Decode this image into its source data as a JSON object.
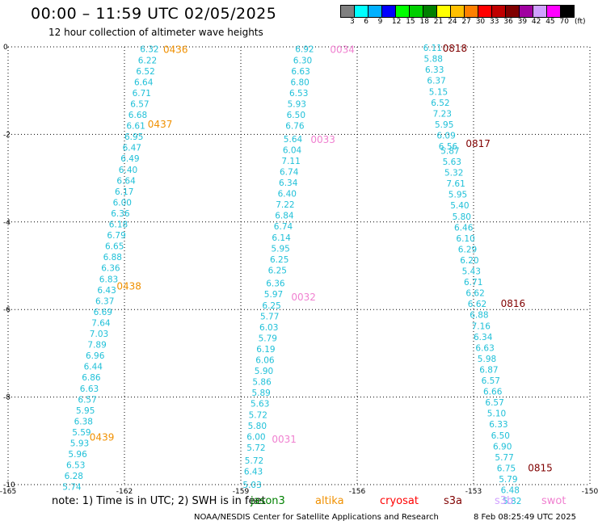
{
  "header": {
    "title": "00:00 – 11:59 UTC 02/05/2025",
    "subtitle": "12 hour collection of altimeter wave heights"
  },
  "legend": {
    "colors": [
      "#808080",
      "#00ffff",
      "#00b0ff",
      "#0000ff",
      "#00ff00",
      "#00d000",
      "#008000",
      "#ffff00",
      "#ffc000",
      "#ff8000",
      "#ff0000",
      "#c00000",
      "#800000",
      "#a000a0",
      "#d0a0ff",
      "#ff00ff",
      "#000000"
    ],
    "labels": [
      "3",
      "6",
      "9",
      "12",
      "15",
      "18",
      "21",
      "24",
      "27",
      "30",
      "33",
      "36",
      "39",
      "42",
      "45",
      "70"
    ],
    "unit": "(ft)"
  },
  "axes": {
    "x_ticks": [
      "-165",
      "-162",
      "-159",
      "-156",
      "-153",
      "-150"
    ],
    "y_ticks": [
      "0",
      "-2",
      "-4",
      "-6",
      "-8",
      "-10"
    ]
  },
  "passes": [
    {
      "color": "#f09000",
      "labels": [
        {
          "text": "0436",
          "lon": -161.0,
          "lat": -0.05
        },
        {
          "text": "0437",
          "lon": -161.4,
          "lat": -1.75
        },
        {
          "text": "0438",
          "lon": -162.2,
          "lat": -5.45
        },
        {
          "text": "0439",
          "lon": -162.9,
          "lat": -8.9
        }
      ],
      "points": [
        {
          "lon": -161.6,
          "lat": -0.05,
          "v": "6.32"
        },
        {
          "lon": -161.65,
          "lat": -0.3,
          "v": "6.22"
        },
        {
          "lon": -161.7,
          "lat": -0.55,
          "v": "6.52"
        },
        {
          "lon": -161.75,
          "lat": -0.8,
          "v": "6.64"
        },
        {
          "lon": -161.8,
          "lat": -1.05,
          "v": "6.71"
        },
        {
          "lon": -161.85,
          "lat": -1.3,
          "v": "6.57"
        },
        {
          "lon": -161.9,
          "lat": -1.55,
          "v": "6.68"
        },
        {
          "lon": -161.95,
          "lat": -1.8,
          "v": "6.61"
        },
        {
          "lon": -162.0,
          "lat": -2.05,
          "v": "6.95"
        },
        {
          "lon": -162.05,
          "lat": -2.3,
          "v": "6.47"
        },
        {
          "lon": -162.1,
          "lat": -2.55,
          "v": "6.49"
        },
        {
          "lon": -162.15,
          "lat": -2.8,
          "v": "6.40"
        },
        {
          "lon": -162.2,
          "lat": -3.05,
          "v": "6.64"
        },
        {
          "lon": -162.25,
          "lat": -3.3,
          "v": "6.17"
        },
        {
          "lon": -162.3,
          "lat": -3.55,
          "v": "6.00"
        },
        {
          "lon": -162.35,
          "lat": -3.8,
          "v": "6.36"
        },
        {
          "lon": -162.4,
          "lat": -4.05,
          "v": "6.18"
        },
        {
          "lon": -162.45,
          "lat": -4.3,
          "v": "6.79"
        },
        {
          "lon": -162.5,
          "lat": -4.55,
          "v": "6.65"
        },
        {
          "lon": -162.55,
          "lat": -4.8,
          "v": "6.88"
        },
        {
          "lon": -162.6,
          "lat": -5.05,
          "v": "6.36"
        },
        {
          "lon": -162.65,
          "lat": -5.3,
          "v": "6.83"
        },
        {
          "lon": -162.7,
          "lat": -5.55,
          "v": "6.43"
        },
        {
          "lon": -162.75,
          "lat": -5.8,
          "v": "6.37"
        },
        {
          "lon": -162.8,
          "lat": -6.05,
          "v": "6.69"
        },
        {
          "lon": -162.85,
          "lat": -6.3,
          "v": "7.64"
        },
        {
          "lon": -162.9,
          "lat": -6.55,
          "v": "7.03"
        },
        {
          "lon": -162.95,
          "lat": -6.8,
          "v": "7.89"
        },
        {
          "lon": -163.0,
          "lat": -7.05,
          "v": "6.96"
        },
        {
          "lon": -163.05,
          "lat": -7.3,
          "v": "6.44"
        },
        {
          "lon": -163.1,
          "lat": -7.55,
          "v": "6.86"
        },
        {
          "lon": -163.15,
          "lat": -7.8,
          "v": "6.63"
        },
        {
          "lon": -163.2,
          "lat": -8.05,
          "v": "6.57"
        },
        {
          "lon": -163.25,
          "lat": -8.3,
          "v": "5.95"
        },
        {
          "lon": -163.3,
          "lat": -8.55,
          "v": "6.38"
        },
        {
          "lon": -163.35,
          "lat": -8.8,
          "v": "5.59"
        },
        {
          "lon": -163.4,
          "lat": -9.05,
          "v": "5.93"
        },
        {
          "lon": -163.45,
          "lat": -9.3,
          "v": "5.96"
        },
        {
          "lon": -163.5,
          "lat": -9.55,
          "v": "6.53"
        },
        {
          "lon": -163.55,
          "lat": -9.8,
          "v": "6.28"
        },
        {
          "lon": -163.6,
          "lat": -10.05,
          "v": "5.74"
        }
      ]
    },
    {
      "color": "#f080d0",
      "labels": [
        {
          "text": "0034",
          "lon": -156.7,
          "lat": -0.05
        },
        {
          "text": "0033",
          "lon": -157.2,
          "lat": -2.1
        },
        {
          "text": "0032",
          "lon": -157.7,
          "lat": -5.7
        },
        {
          "text": "0031",
          "lon": -158.2,
          "lat": -8.95
        }
      ],
      "points": [
        {
          "lon": -157.6,
          "lat": -0.05,
          "v": "6.92"
        },
        {
          "lon": -157.65,
          "lat": -0.3,
          "v": "6.30"
        },
        {
          "lon": -157.7,
          "lat": -0.55,
          "v": "6.63"
        },
        {
          "lon": -157.72,
          "lat": -0.8,
          "v": "6.80"
        },
        {
          "lon": -157.75,
          "lat": -1.05,
          "v": "6.53"
        },
        {
          "lon": -157.8,
          "lat": -1.3,
          "v": "5.93"
        },
        {
          "lon": -157.82,
          "lat": -1.55,
          "v": "6.50"
        },
        {
          "lon": -157.85,
          "lat": -1.8,
          "v": "6.76"
        },
        {
          "lon": -157.9,
          "lat": -2.1,
          "v": "5.64"
        },
        {
          "lon": -157.92,
          "lat": -2.35,
          "v": "6.04"
        },
        {
          "lon": -157.95,
          "lat": -2.6,
          "v": "7.11"
        },
        {
          "lon": -158.0,
          "lat": -2.85,
          "v": "6.74"
        },
        {
          "lon": -158.02,
          "lat": -3.1,
          "v": "6.34"
        },
        {
          "lon": -158.05,
          "lat": -3.35,
          "v": "6.40"
        },
        {
          "lon": -158.1,
          "lat": -3.6,
          "v": "7.22"
        },
        {
          "lon": -158.12,
          "lat": -3.85,
          "v": "6.84"
        },
        {
          "lon": -158.15,
          "lat": -4.1,
          "v": "6.74"
        },
        {
          "lon": -158.2,
          "lat": -4.35,
          "v": "6.14"
        },
        {
          "lon": -158.22,
          "lat": -4.6,
          "v": "5.95"
        },
        {
          "lon": -158.25,
          "lat": -4.85,
          "v": "6.25"
        },
        {
          "lon": -158.3,
          "lat": -5.1,
          "v": "6.25"
        },
        {
          "lon": -158.35,
          "lat": -5.4,
          "v": "6.36"
        },
        {
          "lon": -158.4,
          "lat": -5.65,
          "v": "5.97"
        },
        {
          "lon": -158.45,
          "lat": -5.9,
          "v": "6.25"
        },
        {
          "lon": -158.5,
          "lat": -6.15,
          "v": "5.77"
        },
        {
          "lon": -158.52,
          "lat": -6.4,
          "v": "6.03"
        },
        {
          "lon": -158.55,
          "lat": -6.65,
          "v": "5.79"
        },
        {
          "lon": -158.6,
          "lat": -6.9,
          "v": "6.19"
        },
        {
          "lon": -158.62,
          "lat": -7.15,
          "v": "6.06"
        },
        {
          "lon": -158.65,
          "lat": -7.4,
          "v": "5.90"
        },
        {
          "lon": -158.7,
          "lat": -7.65,
          "v": "5.86"
        },
        {
          "lon": -158.72,
          "lat": -7.9,
          "v": "5.89"
        },
        {
          "lon": -158.75,
          "lat": -8.15,
          "v": "5.63"
        },
        {
          "lon": -158.8,
          "lat": -8.4,
          "v": "5.72"
        },
        {
          "lon": -158.82,
          "lat": -8.65,
          "v": "5.80"
        },
        {
          "lon": -158.85,
          "lat": -8.9,
          "v": "6.00"
        },
        {
          "lon": -158.85,
          "lat": -9.15,
          "v": "5.72"
        },
        {
          "lon": -158.9,
          "lat": -9.45,
          "v": "5.72"
        },
        {
          "lon": -158.92,
          "lat": -9.7,
          "v": "6.43"
        },
        {
          "lon": -158.95,
          "lat": -10.0,
          "v": "5.03"
        }
      ]
    },
    {
      "color": "#800000",
      "labels": [
        {
          "text": "0818",
          "lon": -153.8,
          "lat": -0.02
        },
        {
          "text": "0817",
          "lon": -153.2,
          "lat": -2.2
        },
        {
          "text": "0816",
          "lon": -152.3,
          "lat": -5.85
        },
        {
          "text": "0815",
          "lon": -151.6,
          "lat": -9.6
        }
      ],
      "points": [
        {
          "lon": -154.3,
          "lat": -0.02,
          "v": "6.11"
        },
        {
          "lon": -154.28,
          "lat": -0.27,
          "v": "5.88"
        },
        {
          "lon": -154.25,
          "lat": -0.52,
          "v": "6.33"
        },
        {
          "lon": -154.2,
          "lat": -0.77,
          "v": "6.37"
        },
        {
          "lon": -154.15,
          "lat": -1.02,
          "v": "5.15"
        },
        {
          "lon": -154.1,
          "lat": -1.27,
          "v": "6.52"
        },
        {
          "lon": -154.05,
          "lat": -1.52,
          "v": "7.23"
        },
        {
          "lon": -154.0,
          "lat": -1.77,
          "v": "5.95"
        },
        {
          "lon": -153.95,
          "lat": -2.02,
          "v": "6.09"
        },
        {
          "lon": -153.9,
          "lat": -2.27,
          "v": "6.56"
        },
        {
          "lon": -153.85,
          "lat": -2.37,
          "v": "5.87"
        },
        {
          "lon": -153.8,
          "lat": -2.62,
          "v": "5.63"
        },
        {
          "lon": -153.75,
          "lat": -2.87,
          "v": "5.32"
        },
        {
          "lon": -153.7,
          "lat": -3.12,
          "v": "7.61"
        },
        {
          "lon": -153.65,
          "lat": -3.37,
          "v": "5.95"
        },
        {
          "lon": -153.6,
          "lat": -3.62,
          "v": "5.40"
        },
        {
          "lon": -153.55,
          "lat": -3.87,
          "v": "5.80"
        },
        {
          "lon": -153.5,
          "lat": -4.12,
          "v": "6.46"
        },
        {
          "lon": -153.45,
          "lat": -4.37,
          "v": "6.10"
        },
        {
          "lon": -153.4,
          "lat": -4.62,
          "v": "6.29"
        },
        {
          "lon": -153.35,
          "lat": -4.87,
          "v": "6.20"
        },
        {
          "lon": -153.3,
          "lat": -5.12,
          "v": "5.43"
        },
        {
          "lon": -153.25,
          "lat": -5.37,
          "v": "6.71"
        },
        {
          "lon": -153.2,
          "lat": -5.62,
          "v": "6.62"
        },
        {
          "lon": -153.15,
          "lat": -5.87,
          "v": "6.62"
        },
        {
          "lon": -153.1,
          "lat": -6.12,
          "v": "6.88"
        },
        {
          "lon": -153.05,
          "lat": -6.37,
          "v": "7.16"
        },
        {
          "lon": -153.0,
          "lat": -6.62,
          "v": "6.34"
        },
        {
          "lon": -152.95,
          "lat": -6.87,
          "v": "6.63"
        },
        {
          "lon": -152.9,
          "lat": -7.12,
          "v": "5.98"
        },
        {
          "lon": -152.85,
          "lat": -7.37,
          "v": "6.87"
        },
        {
          "lon": -152.8,
          "lat": -7.62,
          "v": "6.57"
        },
        {
          "lon": -152.75,
          "lat": -7.87,
          "v": "6.66"
        },
        {
          "lon": -152.7,
          "lat": -8.12,
          "v": "6.57"
        },
        {
          "lon": -152.65,
          "lat": -8.37,
          "v": "5.10"
        },
        {
          "lon": -152.6,
          "lat": -8.62,
          "v": "6.33"
        },
        {
          "lon": -152.55,
          "lat": -8.87,
          "v": "6.50"
        },
        {
          "lon": -152.5,
          "lat": -9.12,
          "v": "6.90"
        },
        {
          "lon": -152.45,
          "lat": -9.37,
          "v": "5.77"
        },
        {
          "lon": -152.4,
          "lat": -9.62,
          "v": "6.75"
        },
        {
          "lon": -152.35,
          "lat": -9.87,
          "v": "5.79"
        },
        {
          "lon": -152.3,
          "lat": -10.12,
          "v": "6.48"
        },
        {
          "lon": -152.25,
          "lat": -10.37,
          "v": "5.82"
        }
      ]
    }
  ],
  "footer": {
    "note": "note: 1) Time is in UTC; 2) SWH is in feet",
    "satellites": [
      {
        "name": "jason3",
        "color": "#008000"
      },
      {
        "name": "altika",
        "color": "#f09000"
      },
      {
        "name": "cryosat",
        "color": "#ff0000"
      },
      {
        "name": "s3a",
        "color": "#800000"
      },
      {
        "name": "s3b",
        "color": "#d0a0ff"
      },
      {
        "name": "swot",
        "color": "#f080d0"
      }
    ],
    "credit": "NOAA/NESDIS Center for Satellite Applications and Research",
    "timestamp": "8 Feb 08:25:49 UTC 2025"
  }
}
